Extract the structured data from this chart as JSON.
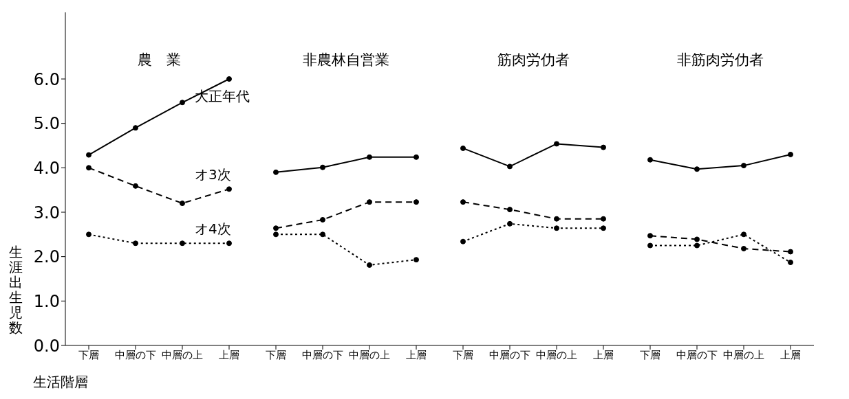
{
  "chart_data": {
    "type": "line",
    "ylabel": "生涯出生児数",
    "xlabel": "生活階層",
    "annotations": [
      "農　業",
      "非農林自営業",
      "筋肉労仂者",
      "非筋肉労仂者"
    ],
    "categories": [
      "下層",
      "中層の下",
      "中層の上",
      "上層",
      "下層",
      "中層の下",
      "中層の上",
      "上層",
      "下層",
      "中層の下",
      "中層の上",
      "上層",
      "下層",
      "中層の下",
      "中層の上",
      "上層"
    ],
    "ylim": [
      0,
      7.5
    ],
    "yticks": [
      {
        "value": 0,
        "label": "0.0"
      },
      {
        "value": 1,
        "label": "1.0"
      },
      {
        "value": 2,
        "label": "2.0"
      },
      {
        "value": 3,
        "label": "3.0"
      },
      {
        "value": 4,
        "label": "4.0"
      },
      {
        "value": 5,
        "label": "5.0"
      },
      {
        "value": 6,
        "label": "6.0"
      }
    ],
    "grid": false,
    "legend": false,
    "marker": "circle",
    "series": [
      {
        "name": "大正年代",
        "color": "#000000",
        "line_style": "solid",
        "values": [
          4.29,
          4.9,
          5.47,
          6.0,
          null,
          null,
          null,
          null,
          null,
          null,
          null,
          null,
          null,
          null,
          null,
          null
        ]
      },
      {
        "name": "オ3次",
        "color": "#000000",
        "line_style": "dashed",
        "values": [
          4.0,
          3.59,
          3.2,
          3.52,
          null,
          null,
          null,
          null,
          null,
          null,
          null,
          null,
          null,
          null,
          null,
          null
        ]
      },
      {
        "name": "オ4次",
        "color": "#000000",
        "line_style": "dotted",
        "values": [
          2.5,
          2.3,
          2.3,
          2.3,
          null,
          null,
          null,
          null,
          null,
          null,
          null,
          null,
          null,
          null,
          null,
          null
        ]
      },
      {
        "color": "#000000",
        "line_style": "solid",
        "values": [
          null,
          null,
          null,
          null,
          3.9,
          4.01,
          4.24,
          4.24,
          null,
          null,
          null,
          null,
          null,
          null,
          null,
          null
        ]
      },
      {
        "color": "#000000",
        "line_style": "dashed",
        "values": [
          null,
          null,
          null,
          null,
          2.64,
          2.83,
          3.23,
          3.23,
          null,
          null,
          null,
          null,
          null,
          null,
          null,
          null
        ]
      },
      {
        "color": "#000000",
        "line_style": "dotted",
        "values": [
          null,
          null,
          null,
          null,
          2.5,
          2.5,
          1.81,
          1.93,
          null,
          null,
          null,
          null,
          null,
          null,
          null,
          null
        ]
      },
      {
        "color": "#000000",
        "line_style": "solid",
        "values": [
          null,
          null,
          null,
          null,
          null,
          null,
          null,
          null,
          4.44,
          4.03,
          4.54,
          4.46,
          null,
          null,
          null,
          null
        ]
      },
      {
        "color": "#000000",
        "line_style": "dashed",
        "values": [
          null,
          null,
          null,
          null,
          null,
          null,
          null,
          null,
          3.23,
          3.06,
          2.85,
          2.85,
          null,
          null,
          null,
          null
        ]
      },
      {
        "color": "#000000",
        "line_style": "dotted",
        "values": [
          null,
          null,
          null,
          null,
          null,
          null,
          null,
          null,
          2.34,
          2.74,
          2.64,
          2.64,
          null,
          null,
          null,
          null
        ]
      },
      {
        "color": "#000000",
        "line_style": "solid",
        "values": [
          null,
          null,
          null,
          null,
          null,
          null,
          null,
          null,
          null,
          null,
          null,
          null,
          4.18,
          3.97,
          4.05,
          4.3
        ]
      },
      {
        "color": "#000000",
        "line_style": "dashed",
        "values": [
          null,
          null,
          null,
          null,
          null,
          null,
          null,
          null,
          null,
          null,
          null,
          null,
          2.47,
          2.39,
          2.18,
          2.11
        ]
      },
      {
        "color": "#000000",
        "line_style": "dotted",
        "values": [
          null,
          null,
          null,
          null,
          null,
          null,
          null,
          null,
          null,
          null,
          null,
          null,
          2.25,
          2.25,
          2.5,
          1.87
        ]
      }
    ]
  }
}
